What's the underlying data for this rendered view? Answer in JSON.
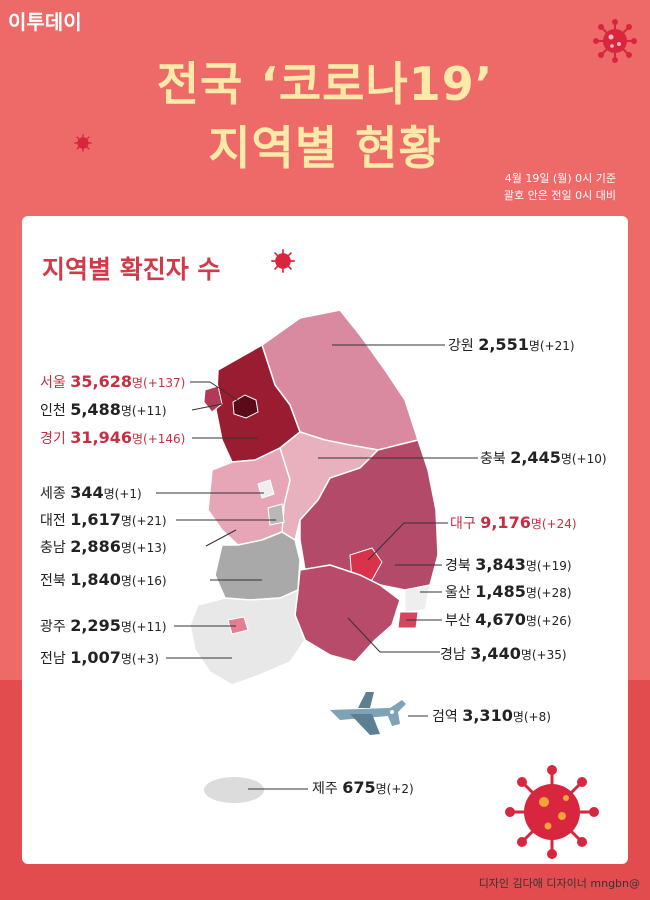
{
  "logo": "이투데이",
  "title_line1": "전국 ‘코로나19’",
  "title_line2": "지역별 현황",
  "date_line1": "4월 19일 (월) 0시 기준",
  "date_line2": "괄호 안은 전일 0시 대비",
  "card_title": "지역별 확진자 수",
  "unit": "명",
  "regions": {
    "gangwon": {
      "name": "강원",
      "count": "2,551",
      "diff": "(+21)"
    },
    "seoul": {
      "name": "서울",
      "count": "35,628",
      "diff": "(+137)"
    },
    "incheon": {
      "name": "인천",
      "count": "5,488",
      "diff": "(+11)"
    },
    "gyeonggi": {
      "name": "경기",
      "count": "31,946",
      "diff": "(+146)"
    },
    "chungbuk": {
      "name": "충북",
      "count": "2,445",
      "diff": "(+10)"
    },
    "sejong": {
      "name": "세종",
      "count": "344",
      "diff": "(+1)"
    },
    "daejeon": {
      "name": "대전",
      "count": "1,617",
      "diff": "(+21)"
    },
    "daegu": {
      "name": "대구",
      "count": "9,176",
      "diff": "(+24)"
    },
    "chungnam": {
      "name": "충남",
      "count": "2,886",
      "diff": "(+13)"
    },
    "gyeongbuk": {
      "name": "경북",
      "count": "3,843",
      "diff": "(+19)"
    },
    "jeonbuk": {
      "name": "전북",
      "count": "1,840",
      "diff": "(+16)"
    },
    "ulsan": {
      "name": "울산",
      "count": "1,485",
      "diff": "(+28)"
    },
    "busan": {
      "name": "부산",
      "count": "4,670",
      "diff": "(+26)"
    },
    "gwangju": {
      "name": "광주",
      "count": "2,295",
      "diff": "(+11)"
    },
    "jeonnam": {
      "name": "전남",
      "count": "1,007",
      "diff": "(+3)"
    },
    "gyeongnam": {
      "name": "경남",
      "count": "3,440",
      "diff": "(+35)"
    },
    "quarantine": {
      "name": "검역",
      "count": "3,310",
      "diff": "(+8)"
    },
    "jeju": {
      "name": "제주",
      "count": "675",
      "diff": "(+2)"
    }
  },
  "credit": "디자인 김다애 디자이너 mngbn@",
  "colors": {
    "background": "#ee6a68",
    "title": "#fde9a8",
    "accent": "#c62f43",
    "dark": "#8e1f2c"
  },
  "icons": [
    "virus-icon",
    "airplane-icon"
  ]
}
